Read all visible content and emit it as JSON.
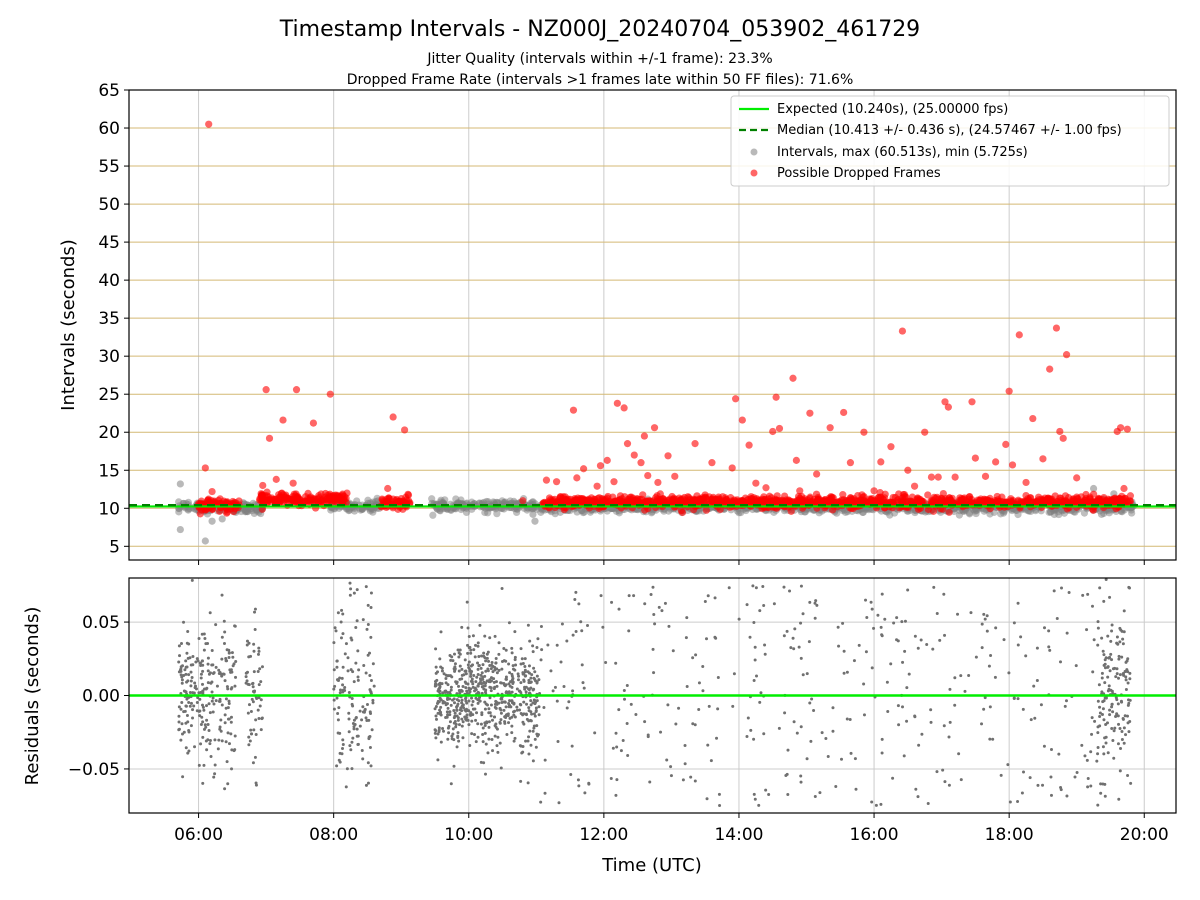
{
  "chart_data": [
    {
      "type": "scatter",
      "title": "Timestamp Intervals - NZ000J_20240704_053902_461729",
      "subtitle_lines": [
        "Jitter Quality (intervals within +/-1 frame): 23.3%",
        "Dropped Frame Rate (intervals >1 frames late within 50 FF files): 71.6%"
      ],
      "xlabel": "",
      "ylabel": "Intervals (seconds)",
      "xlim_hours": [
        4.97,
        20.47
      ],
      "ylim": [
        3.2,
        65
      ],
      "yticks": [
        5,
        10,
        15,
        20,
        25,
        30,
        35,
        40,
        45,
        50,
        55,
        60,
        65
      ],
      "ytick_labels": [
        "5",
        "10",
        "15",
        "20",
        "25",
        "30",
        "35",
        "40",
        "45",
        "50",
        "55",
        "60",
        "65"
      ],
      "grid": true,
      "legend_position": "top-right",
      "legend": [
        "Expected (10.240s), (25.00000 fps)",
        "Median (10.413 +/- 0.436 s), (24.57467 +/- 1.00 fps)",
        "Intervals, max (60.513s), min (5.725s)",
        "Possible Dropped Frames"
      ],
      "expected_line": 10.24,
      "median_line": 10.413,
      "intervals_band": [
        {
          "start_hour": 5.7,
          "end_hour": 6.95,
          "center": 10.1
        },
        {
          "start_hour": 7.95,
          "end_hour": 8.7,
          "center": 10.3
        },
        {
          "start_hour": 9.45,
          "end_hour": 11.05,
          "center": 10.3
        },
        {
          "start_hour": 11.05,
          "end_hour": 19.85,
          "center": 10.1
        }
      ],
      "dropped_frames_band": [
        {
          "start_hour": 6.0,
          "end_hour": 6.6,
          "center": 10.4
        },
        {
          "start_hour": 6.9,
          "end_hour": 8.2,
          "center": 11.2
        },
        {
          "start_hour": 8.7,
          "end_hour": 9.15,
          "center": 10.8
        },
        {
          "start_hour": 11.1,
          "end_hour": 19.8,
          "center": 10.8
        }
      ],
      "outlier_intervals": [
        {
          "x": 5.73,
          "y": 13.2
        },
        {
          "x": 5.73,
          "y": 7.2
        },
        {
          "x": 6.1,
          "y": 5.7
        },
        {
          "x": 6.2,
          "y": 8.3
        },
        {
          "x": 6.35,
          "y": 8.6
        },
        {
          "x": 10.98,
          "y": 8.3
        },
        {
          "x": 10.95,
          "y": 9.2
        },
        {
          "x": 19.25,
          "y": 12.6
        },
        {
          "x": 19.55,
          "y": 11.9
        },
        {
          "x": 19.4,
          "y": 11.2
        }
      ],
      "dropped_frames": [
        {
          "x": 6.15,
          "y": 60.5
        },
        {
          "x": 6.1,
          "y": 15.3
        },
        {
          "x": 6.2,
          "y": 12.2
        },
        {
          "x": 7.0,
          "y": 25.6
        },
        {
          "x": 7.05,
          "y": 19.2
        },
        {
          "x": 7.25,
          "y": 21.6
        },
        {
          "x": 7.45,
          "y": 25.6
        },
        {
          "x": 7.7,
          "y": 21.2
        },
        {
          "x": 7.95,
          "y": 25.0
        },
        {
          "x": 7.15,
          "y": 13.8
        },
        {
          "x": 6.95,
          "y": 13.0
        },
        {
          "x": 7.4,
          "y": 13.3
        },
        {
          "x": 8.88,
          "y": 22.0
        },
        {
          "x": 9.05,
          "y": 20.3
        },
        {
          "x": 8.8,
          "y": 12.6
        },
        {
          "x": 10.8,
          "y": 11.0
        },
        {
          "x": 11.15,
          "y": 13.7
        },
        {
          "x": 11.3,
          "y": 13.5
        },
        {
          "x": 11.55,
          "y": 22.9
        },
        {
          "x": 11.7,
          "y": 15.2
        },
        {
          "x": 11.6,
          "y": 14.0
        },
        {
          "x": 11.9,
          "y": 12.9
        },
        {
          "x": 11.95,
          "y": 15.6
        },
        {
          "x": 12.05,
          "y": 16.3
        },
        {
          "x": 12.2,
          "y": 23.8
        },
        {
          "x": 12.3,
          "y": 23.2
        },
        {
          "x": 12.15,
          "y": 13.5
        },
        {
          "x": 12.35,
          "y": 18.5
        },
        {
          "x": 12.45,
          "y": 17.0
        },
        {
          "x": 12.55,
          "y": 16.0
        },
        {
          "x": 12.6,
          "y": 19.5
        },
        {
          "x": 12.75,
          "y": 20.6
        },
        {
          "x": 12.65,
          "y": 14.3
        },
        {
          "x": 12.8,
          "y": 13.4
        },
        {
          "x": 12.95,
          "y": 16.9
        },
        {
          "x": 13.05,
          "y": 14.2
        },
        {
          "x": 13.35,
          "y": 18.5
        },
        {
          "x": 13.6,
          "y": 16.0
        },
        {
          "x": 13.9,
          "y": 15.3
        },
        {
          "x": 13.95,
          "y": 24.4
        },
        {
          "x": 14.05,
          "y": 21.6
        },
        {
          "x": 14.15,
          "y": 18.3
        },
        {
          "x": 14.25,
          "y": 13.3
        },
        {
          "x": 14.4,
          "y": 12.7
        },
        {
          "x": 14.5,
          "y": 20.1
        },
        {
          "x": 14.6,
          "y": 20.5
        },
        {
          "x": 14.55,
          "y": 24.6
        },
        {
          "x": 14.8,
          "y": 27.1
        },
        {
          "x": 14.85,
          "y": 16.3
        },
        {
          "x": 14.9,
          "y": 12.3
        },
        {
          "x": 15.05,
          "y": 22.5
        },
        {
          "x": 15.15,
          "y": 14.5
        },
        {
          "x": 15.35,
          "y": 20.6
        },
        {
          "x": 15.55,
          "y": 22.6
        },
        {
          "x": 15.65,
          "y": 16.0
        },
        {
          "x": 15.85,
          "y": 20.0
        },
        {
          "x": 16.0,
          "y": 12.3
        },
        {
          "x": 16.1,
          "y": 16.1
        },
        {
          "x": 16.25,
          "y": 18.1
        },
        {
          "x": 16.42,
          "y": 33.3
        },
        {
          "x": 16.5,
          "y": 15.0
        },
        {
          "x": 16.6,
          "y": 12.9
        },
        {
          "x": 16.75,
          "y": 20.0
        },
        {
          "x": 16.85,
          "y": 14.1
        },
        {
          "x": 16.95,
          "y": 14.1
        },
        {
          "x": 17.05,
          "y": 24.0
        },
        {
          "x": 17.1,
          "y": 23.3
        },
        {
          "x": 17.2,
          "y": 14.1
        },
        {
          "x": 17.45,
          "y": 24.0
        },
        {
          "x": 17.5,
          "y": 16.6
        },
        {
          "x": 17.65,
          "y": 14.2
        },
        {
          "x": 17.8,
          "y": 16.1
        },
        {
          "x": 17.95,
          "y": 18.4
        },
        {
          "x": 18.0,
          "y": 25.4
        },
        {
          "x": 18.05,
          "y": 15.7
        },
        {
          "x": 18.15,
          "y": 32.8
        },
        {
          "x": 18.25,
          "y": 13.4
        },
        {
          "x": 18.35,
          "y": 21.8
        },
        {
          "x": 18.5,
          "y": 16.5
        },
        {
          "x": 18.6,
          "y": 28.3
        },
        {
          "x": 18.7,
          "y": 33.7
        },
        {
          "x": 18.75,
          "y": 20.1
        },
        {
          "x": 18.8,
          "y": 19.2
        },
        {
          "x": 18.85,
          "y": 30.2
        },
        {
          "x": 19.0,
          "y": 14.0
        },
        {
          "x": 19.6,
          "y": 20.1
        },
        {
          "x": 19.65,
          "y": 20.6
        },
        {
          "x": 19.75,
          "y": 20.4
        },
        {
          "x": 19.7,
          "y": 12.6
        },
        {
          "x": 19.72,
          "y": 11.3
        }
      ]
    },
    {
      "type": "scatter",
      "title": "",
      "xlabel": "Time (UTC)",
      "ylabel": "Residuals (seconds)",
      "xlim_hours": [
        4.97,
        20.47
      ],
      "ylim": [
        -0.08,
        0.08
      ],
      "yticks": [
        -0.05,
        0.0,
        0.05
      ],
      "ytick_labels": [
        "−0.05",
        "0.00",
        "0.05"
      ],
      "xticks_hours": [
        6,
        8,
        10,
        12,
        14,
        16,
        18,
        20
      ],
      "xtick_labels": [
        "06:00",
        "08:00",
        "10:00",
        "12:00",
        "14:00",
        "16:00",
        "18:00",
        "20:00"
      ],
      "grid": true,
      "zero_line": 0.0,
      "point_clusters": [
        {
          "start_hour": 5.7,
          "end_hour": 6.05,
          "count": 110,
          "spread": 0.04
        },
        {
          "start_hour": 6.05,
          "end_hour": 6.55,
          "count": 140,
          "spread": 0.05
        },
        {
          "start_hour": 6.7,
          "end_hour": 6.95,
          "count": 60,
          "spread": 0.045
        },
        {
          "start_hour": 8.0,
          "end_hour": 8.6,
          "count": 140,
          "spread": 0.06
        },
        {
          "start_hour": 9.5,
          "end_hour": 11.05,
          "count": 650,
          "spread": 0.035
        },
        {
          "start_hour": 11.05,
          "end_hour": 19.3,
          "count": 380,
          "spread": 0.075
        },
        {
          "start_hour": 19.3,
          "end_hour": 19.8,
          "count": 160,
          "spread": 0.06
        }
      ]
    }
  ],
  "colors": {
    "expected": "#00ee00",
    "median": "#008000",
    "intervals": "#808080",
    "dropped": "#ff0000",
    "ygrid": "#d4b974",
    "xgrid": "#cccccc",
    "residuals": "#707070"
  }
}
